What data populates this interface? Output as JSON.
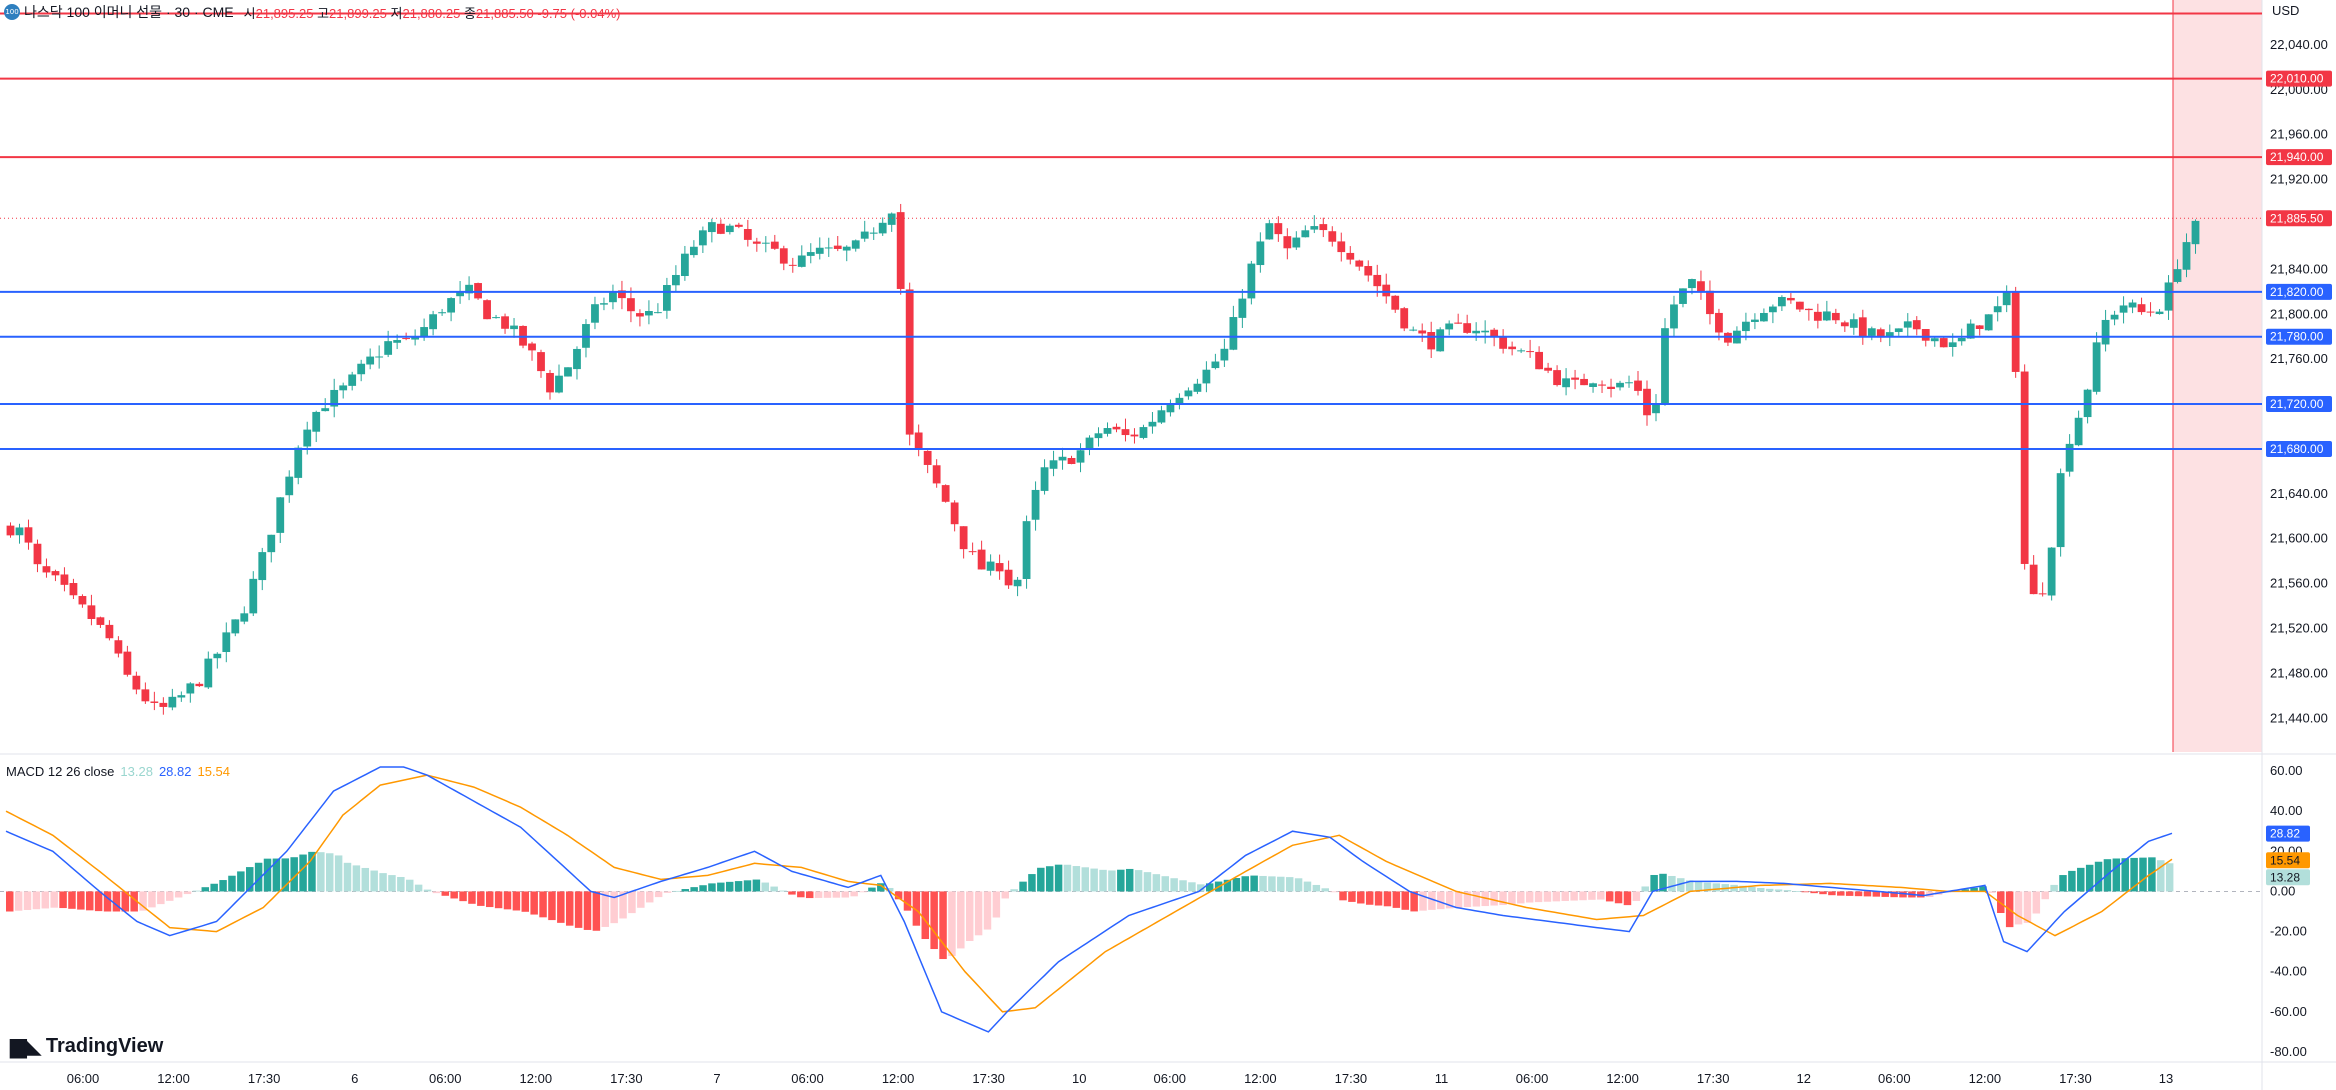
{
  "header": {
    "symbol_icon": "100",
    "title": "나스닥 100 이머니 선물 · 30 · CME",
    "open_label": "시",
    "open": "21,895.25",
    "high_label": "고",
    "high": "21,899.25",
    "low_label": "저",
    "low": "21,880.25",
    "close_label": "종",
    "close": "21,885.50",
    "change": "-9.75 (-0.04%)"
  },
  "currency": "USD",
  "macd_legend": {
    "label": "MACD 12 26 close",
    "hist": "13.28",
    "macd": "28.82",
    "signal": "15.54"
  },
  "branding": {
    "logo_text": "TradingView"
  },
  "colors": {
    "up": "#26a69a",
    "down": "#f23645",
    "support": "#2962ff",
    "resistance": "#f23645",
    "macd": "#2962ff",
    "signal": "#ff9800",
    "hist_up_strong": "#26a69a",
    "hist_up_weak": "#b2dfdb",
    "hist_down_strong": "#ff5252",
    "hist_down_weak": "#ffcdd2"
  },
  "chart_data": [
    {
      "type": "candlestick",
      "title": "나스닥 100 이머니 선물 · 30 · CME",
      "ylim": [
        21410,
        22080
      ],
      "y_ticks": [
        "22,040.00",
        "22,000.00",
        "21,960.00",
        "21,920.00",
        "21,840.00",
        "21,800.00",
        "21,760.00",
        "21,640.00",
        "21,600.00",
        "21,560.00",
        "21,520.00",
        "21,480.00",
        "21,440.00"
      ],
      "x_ticks": [
        "06:00",
        "12:00",
        "17:30",
        "6",
        "06:00",
        "12:00",
        "17:30",
        "7",
        "06:00",
        "12:00",
        "17:30",
        "10",
        "06:00",
        "12:00",
        "17:30",
        "11",
        "06:00",
        "12:00",
        "17:30",
        "12",
        "06:00",
        "12:00",
        "17:30",
        "13"
      ],
      "bar_count": 244,
      "price_levels": [
        {
          "value": 22068,
          "role": "resistance",
          "labeled": false
        },
        {
          "value": 22010.0,
          "label": "22,010.00",
          "role": "resistance"
        },
        {
          "value": 21940.0,
          "label": "21,940.00",
          "role": "resistance"
        },
        {
          "value": 21820.0,
          "label": "21,820.00",
          "role": "support"
        },
        {
          "value": 21780.0,
          "label": "21,780.00",
          "role": "support"
        },
        {
          "value": 21720.0,
          "label": "21,720.00",
          "role": "support"
        },
        {
          "value": 21680.0,
          "label": "21,680.00",
          "role": "support"
        }
      ],
      "last_price": {
        "value": 21885.5,
        "label": "21,885.50"
      },
      "anchors": [
        [
          0,
          21610
        ],
        [
          3,
          21605
        ],
        [
          5,
          21575
        ],
        [
          10,
          21560
        ],
        [
          13,
          21545
        ],
        [
          17,
          21530
        ],
        [
          21,
          21510
        ],
        [
          24,
          21480
        ],
        [
          28,
          21460
        ],
        [
          31,
          21445
        ],
        [
          35,
          21455
        ],
        [
          40,
          21475
        ],
        [
          44,
          21500
        ],
        [
          49,
          21535
        ],
        [
          53,
          21580
        ],
        [
          57,
          21635
        ],
        [
          62,
          21700
        ],
        [
          66,
          21720
        ],
        [
          71,
          21735
        ],
        [
          75,
          21755
        ],
        [
          80,
          21775
        ],
        [
          84,
          21775
        ],
        [
          88,
          21790
        ],
        [
          92,
          21810
        ],
        [
          97,
          21820
        ],
        [
          101,
          21800
        ],
        [
          105,
          21790
        ],
        [
          110,
          21765
        ],
        [
          114,
          21735
        ],
        [
          118,
          21755
        ],
        [
          123,
          21800
        ],
        [
          127,
          21820
        ],
        [
          132,
          21800
        ],
        [
          136,
          21800
        ],
        [
          140,
          21830
        ],
        [
          144,
          21860
        ],
        [
          149,
          21880
        ],
        [
          153,
          21875
        ],
        [
          157,
          21860
        ],
        [
          162,
          21855
        ],
        [
          166,
          21845
        ],
        [
          170,
          21855
        ],
        [
          175,
          21855
        ],
        [
          179,
          21860
        ],
        [
          183,
          21880
        ],
        [
          187,
          21900
        ],
        [
          190,
          21690
        ],
        [
          194,
          21660
        ],
        [
          198,
          21630
        ],
        [
          202,
          21590
        ],
        [
          206,
          21570
        ],
        [
          210,
          21580
        ],
        [
          212,
          21540
        ],
        [
          214,
          21600
        ],
        [
          218,
          21660
        ],
        [
          223,
          21670
        ],
        [
          227,
          21680
        ],
        [
          231,
          21700
        ],
        [
          236,
          21690
        ],
        [
          240,
          21700
        ],
        [
          244,
          21720
        ],
        [
          248,
          21735
        ],
        [
          253,
          21750
        ],
        [
          257,
          21770
        ],
        [
          261,
          21830
        ],
        [
          266,
          21880
        ],
        [
          270,
          21855
        ],
        [
          274,
          21875
        ],
        [
          279,
          21870
        ],
        [
          283,
          21855
        ],
        [
          287,
          21835
        ],
        [
          291,
          21815
        ],
        [
          296,
          21785
        ],
        [
          300,
          21775
        ],
        [
          304,
          21785
        ],
        [
          309,
          21790
        ],
        [
          313,
          21780
        ],
        [
          317,
          21770
        ],
        [
          322,
          21760
        ],
        [
          326,
          21745
        ],
        [
          330,
          21735
        ],
        [
          335,
          21745
        ],
        [
          339,
          21735
        ],
        [
          343,
          21740
        ],
        [
          347,
          21700
        ],
        [
          350,
          21800
        ],
        [
          355,
          21830
        ],
        [
          359,
          21800
        ],
        [
          363,
          21780
        ],
        [
          368,
          21800
        ],
        [
          372,
          21810
        ],
        [
          376,
          21810
        ],
        [
          381,
          21800
        ],
        [
          385,
          21800
        ],
        [
          389,
          21790
        ],
        [
          394,
          21780
        ],
        [
          398,
          21780
        ],
        [
          402,
          21790
        ],
        [
          406,
          21780
        ],
        [
          411,
          21770
        ],
        [
          415,
          21790
        ],
        [
          419,
          21800
        ],
        [
          423,
          21820
        ],
        [
          426,
          21540
        ],
        [
          430,
          21560
        ],
        [
          434,
          21680
        ],
        [
          438,
          21720
        ],
        [
          442,
          21790
        ],
        [
          446,
          21810
        ],
        [
          451,
          21800
        ],
        [
          455,
          21810
        ],
        [
          459,
          21860
        ],
        [
          463,
          21885
        ]
      ]
    },
    {
      "type": "line",
      "title": "MACD 12 26 close",
      "ylim": [
        -85,
        67
      ],
      "y_ticks": [
        "60.00",
        "40.00",
        "20.00",
        "0.00",
        "-20.00",
        "-40.00",
        "-60.00",
        "-80.00"
      ],
      "last_values": {
        "macd": 28.82,
        "signal": 15.54,
        "histogram": 13.28
      },
      "macd_anchors": [
        [
          0,
          30
        ],
        [
          10,
          20
        ],
        [
          20,
          0
        ],
        [
          28,
          -15
        ],
        [
          35,
          -22
        ],
        [
          45,
          -15
        ],
        [
          60,
          20
        ],
        [
          70,
          50
        ],
        [
          80,
          62
        ],
        [
          85,
          62
        ],
        [
          90,
          58
        ],
        [
          100,
          45
        ],
        [
          110,
          32
        ],
        [
          118,
          15
        ],
        [
          125,
          0
        ],
        [
          130,
          -3
        ],
        [
          140,
          5
        ],
        [
          150,
          12
        ],
        [
          160,
          20
        ],
        [
          168,
          10
        ],
        [
          180,
          2
        ],
        [
          187,
          8
        ],
        [
          192,
          -15
        ],
        [
          200,
          -60
        ],
        [
          210,
          -70
        ],
        [
          214,
          -60
        ],
        [
          225,
          -35
        ],
        [
          240,
          -12
        ],
        [
          255,
          0
        ],
        [
          265,
          18
        ],
        [
          275,
          30
        ],
        [
          283,
          27
        ],
        [
          290,
          15
        ],
        [
          300,
          0
        ],
        [
          310,
          -8
        ],
        [
          320,
          -12
        ],
        [
          330,
          -15
        ],
        [
          340,
          -18
        ],
        [
          347,
          -20
        ],
        [
          352,
          0
        ],
        [
          360,
          5
        ],
        [
          370,
          5
        ],
        [
          380,
          4
        ],
        [
          390,
          2
        ],
        [
          400,
          0
        ],
        [
          410,
          -2
        ],
        [
          423,
          3
        ],
        [
          427,
          -25
        ],
        [
          432,
          -30
        ],
        [
          440,
          -10
        ],
        [
          450,
          10
        ],
        [
          458,
          25
        ],
        [
          463,
          29
        ]
      ],
      "signal_anchors": [
        [
          0,
          40
        ],
        [
          10,
          28
        ],
        [
          20,
          10
        ],
        [
          28,
          -5
        ],
        [
          35,
          -18
        ],
        [
          45,
          -20
        ],
        [
          55,
          -8
        ],
        [
          65,
          15
        ],
        [
          72,
          38
        ],
        [
          80,
          53
        ],
        [
          90,
          58
        ],
        [
          100,
          52
        ],
        [
          110,
          42
        ],
        [
          120,
          28
        ],
        [
          130,
          12
        ],
        [
          140,
          6
        ],
        [
          150,
          8
        ],
        [
          160,
          14
        ],
        [
          170,
          12
        ],
        [
          180,
          5
        ],
        [
          187,
          3
        ],
        [
          195,
          -10
        ],
        [
          205,
          -40
        ],
        [
          213,
          -60
        ],
        [
          220,
          -58
        ],
        [
          235,
          -30
        ],
        [
          250,
          -10
        ],
        [
          265,
          10
        ],
        [
          275,
          23
        ],
        [
          285,
          28
        ],
        [
          295,
          15
        ],
        [
          310,
          0
        ],
        [
          325,
          -8
        ],
        [
          340,
          -14
        ],
        [
          350,
          -12
        ],
        [
          360,
          0
        ],
        [
          375,
          3
        ],
        [
          390,
          4
        ],
        [
          405,
          2
        ],
        [
          415,
          0
        ],
        [
          423,
          0
        ],
        [
          430,
          -12
        ],
        [
          438,
          -22
        ],
        [
          448,
          -10
        ],
        [
          458,
          8
        ],
        [
          463,
          16
        ]
      ]
    }
  ]
}
